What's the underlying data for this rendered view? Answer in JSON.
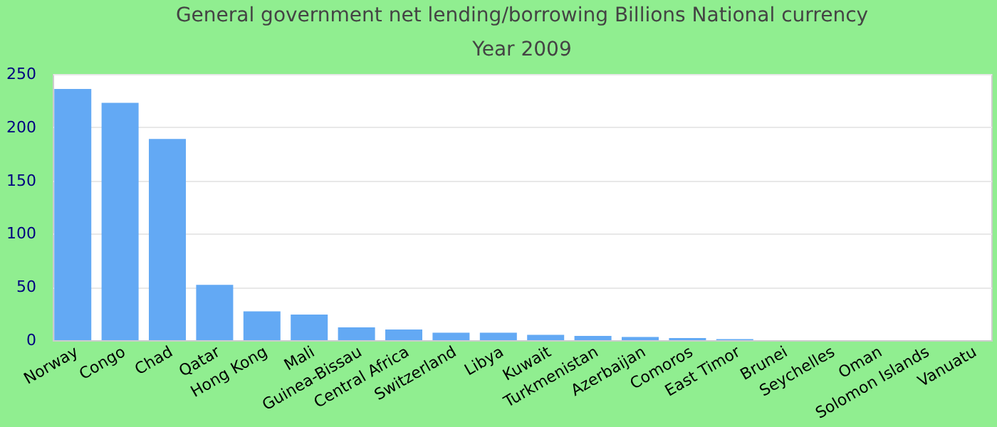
{
  "chart_data": {
    "type": "bar",
    "title": [
      "General government net lending/borrowing Billions National currency",
      "Year 2009"
    ],
    "categories": [
      "Norway",
      "Congo",
      "Chad",
      "Qatar",
      "Hong Kong",
      "Mali",
      "Guinea-Bissau",
      "Central Africa",
      "Switzerland",
      "Libya",
      "Kuwait",
      "Turkmenistan",
      "Azerbaijan",
      "Comoros",
      "East Timor",
      "Brunei",
      "Seychelles",
      "Oman",
      "Solomon Islands",
      "Vanuatu"
    ],
    "values": [
      236,
      223,
      189,
      52,
      27,
      24,
      12,
      10,
      7,
      7,
      5,
      4,
      3,
      2,
      1,
      0,
      0,
      0,
      0,
      0
    ],
    "color": "#63a9f4",
    "ylim": [
      0,
      250
    ],
    "yticks": [
      0,
      50,
      100,
      150,
      200,
      250
    ],
    "grid": "y"
  }
}
